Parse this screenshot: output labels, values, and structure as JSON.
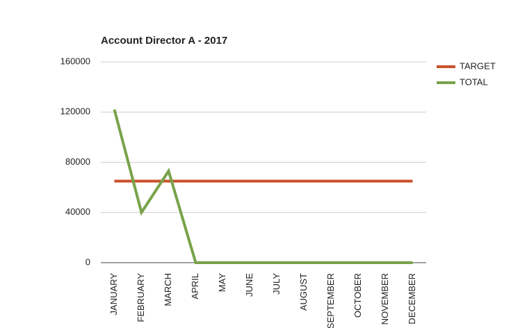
{
  "chart_data": {
    "type": "line",
    "title": "Account Director A - 2017",
    "categories": [
      "JANUARY",
      "FEBRUARY",
      "MARCH",
      "APRIL",
      "MAY",
      "JUNE",
      "JULY",
      "AUGUST",
      "SEPTEMBER",
      "OCTOBER",
      "NOVEMBER",
      "DECEMBER"
    ],
    "series": [
      {
        "name": "TARGET",
        "color": "#c9522c",
        "values": [
          65000,
          65000,
          65000,
          65000,
          65000,
          65000,
          65000,
          65000,
          65000,
          65000,
          65000,
          65000
        ]
      },
      {
        "name": "TOTAL",
        "color": "#78a34a",
        "values": [
          122000,
          40000,
          73000,
          0,
          0,
          0,
          0,
          0,
          0,
          0,
          0,
          0
        ]
      }
    ],
    "ylim": [
      0,
      160000
    ],
    "yticks": [
      0,
      40000,
      80000,
      120000,
      160000
    ],
    "grid": true,
    "legend": "right"
  }
}
